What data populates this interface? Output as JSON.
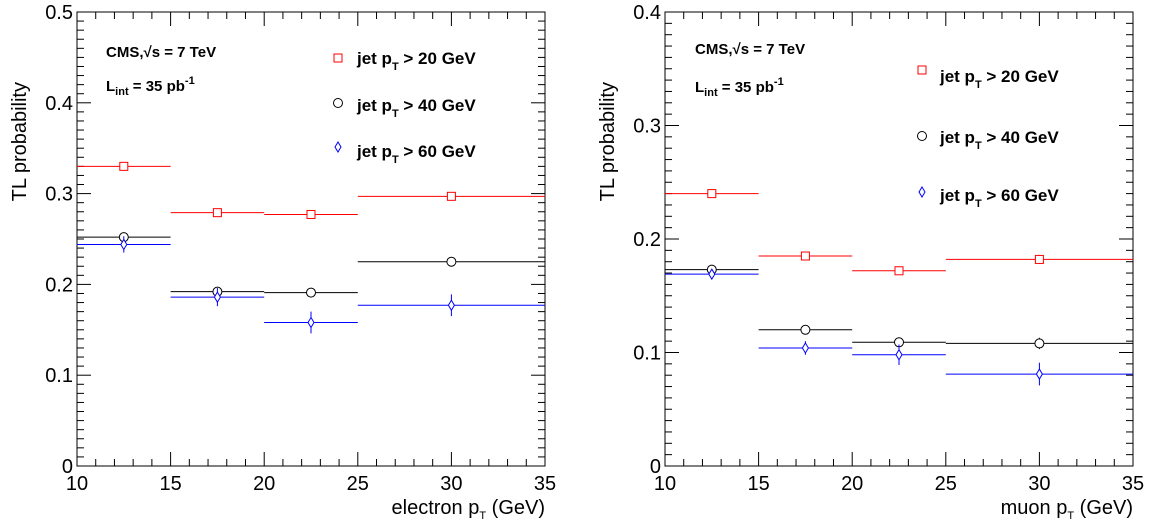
{
  "chart_data": [
    {
      "type": "scatter",
      "xlabel": "electron p",
      "xlabel_sub": "T",
      "xlabel_unit": "(GeV)",
      "ylabel": "TL probability",
      "xlim": [
        10,
        35
      ],
      "ylim": [
        0,
        0.5
      ],
      "x_ticks": [
        "10",
        "15",
        "20",
        "25",
        "30",
        "35"
      ],
      "y_ticks": [
        "0",
        "0.1",
        "0.2",
        "0.3",
        "0.4",
        "0.5"
      ],
      "annotation": {
        "experiment": "CMS,",
        "sqrt": "√s = 7 TeV",
        "lumi_main": "L",
        "lumi_sub": "int",
        "lumi_rest": " = 35 pb",
        "lumi_sup": "-1"
      },
      "series": [
        {
          "name": "jet p_T > 20 GeV",
          "name_main": "jet p",
          "name_sub": "T",
          "name_rest": " > 20 GeV",
          "color": "#ff0000",
          "marker": "square",
          "x_bins": [
            [
              10,
              15
            ],
            [
              15,
              20
            ],
            [
              20,
              25
            ],
            [
              25,
              35
            ]
          ],
          "x": [
            12.5,
            17.5,
            22.5,
            30
          ],
          "values": [
            0.33,
            0.279,
            0.277,
            0.297
          ],
          "err": [
            0.003,
            0.003,
            0.003,
            0.004
          ]
        },
        {
          "name": "jet p_T > 40 GeV",
          "name_main": "jet p",
          "name_sub": "T",
          "name_rest": " > 40 GeV",
          "color": "#000000",
          "marker": "circle",
          "x_bins": [
            [
              10,
              15
            ],
            [
              15,
              20
            ],
            [
              20,
              25
            ],
            [
              25,
              35
            ]
          ],
          "x": [
            12.5,
            17.5,
            22.5,
            30
          ],
          "values": [
            0.252,
            0.192,
            0.191,
            0.225
          ],
          "err": [
            0.004,
            0.004,
            0.004,
            0.005
          ]
        },
        {
          "name": "jet p_T > 60 GeV",
          "name_main": "jet p",
          "name_sub": "T",
          "name_rest": " > 60 GeV",
          "color": "#0000ff",
          "marker": "diamond",
          "x_bins": [
            [
              10,
              15
            ],
            [
              15,
              20
            ],
            [
              20,
              25
            ],
            [
              25,
              35
            ]
          ],
          "x": [
            12.5,
            17.5,
            22.5,
            30
          ],
          "values": [
            0.244,
            0.186,
            0.158,
            0.177
          ],
          "err": [
            0.009,
            0.01,
            0.012,
            0.012
          ]
        }
      ]
    },
    {
      "type": "scatter",
      "xlabel": "muon p",
      "xlabel_sub": "T",
      "xlabel_unit": "(GeV)",
      "ylabel": "TL probability",
      "xlim": [
        10,
        35
      ],
      "ylim": [
        0,
        0.4
      ],
      "x_ticks": [
        "10",
        "15",
        "20",
        "25",
        "30",
        "35"
      ],
      "y_ticks": [
        "0",
        "0.1",
        "0.2",
        "0.3",
        "0.4"
      ],
      "annotation": {
        "experiment": "CMS,",
        "sqrt": "√s = 7 TeV",
        "lumi_main": "L",
        "lumi_sub": "int",
        "lumi_rest": " = 35 pb",
        "lumi_sup": "-1"
      },
      "series": [
        {
          "name": "jet p_T > 20 GeV",
          "name_main": "jet p",
          "name_sub": "T",
          "name_rest": " > 20 GeV",
          "color": "#ff0000",
          "marker": "square",
          "x_bins": [
            [
              10,
              15
            ],
            [
              15,
              20
            ],
            [
              20,
              25
            ],
            [
              25,
              35
            ]
          ],
          "x": [
            12.5,
            17.5,
            22.5,
            30
          ],
          "values": [
            0.24,
            0.185,
            0.172,
            0.182
          ],
          "err": [
            0.002,
            0.002,
            0.002,
            0.004
          ]
        },
        {
          "name": "jet p_T > 40 GeV",
          "name_main": "jet p",
          "name_sub": "T",
          "name_rest": " > 40 GeV",
          "color": "#000000",
          "marker": "circle",
          "x_bins": [
            [
              10,
              15
            ],
            [
              15,
              20
            ],
            [
              20,
              25
            ],
            [
              25,
              35
            ]
          ],
          "x": [
            12.5,
            17.5,
            22.5,
            30
          ],
          "values": [
            0.173,
            0.12,
            0.109,
            0.108
          ],
          "err": [
            0.003,
            0.003,
            0.004,
            0.005
          ]
        },
        {
          "name": "jet p_T > 60 GeV",
          "name_main": "jet p",
          "name_sub": "T",
          "name_rest": " > 60 GeV",
          "color": "#0000ff",
          "marker": "diamond",
          "x_bins": [
            [
              10,
              15
            ],
            [
              15,
              20
            ],
            [
              20,
              25
            ],
            [
              25,
              35
            ]
          ],
          "x": [
            12.5,
            17.5,
            22.5,
            30
          ],
          "values": [
            0.169,
            0.104,
            0.098,
            0.081
          ],
          "err": [
            0.004,
            0.006,
            0.009,
            0.01
          ]
        }
      ]
    }
  ]
}
